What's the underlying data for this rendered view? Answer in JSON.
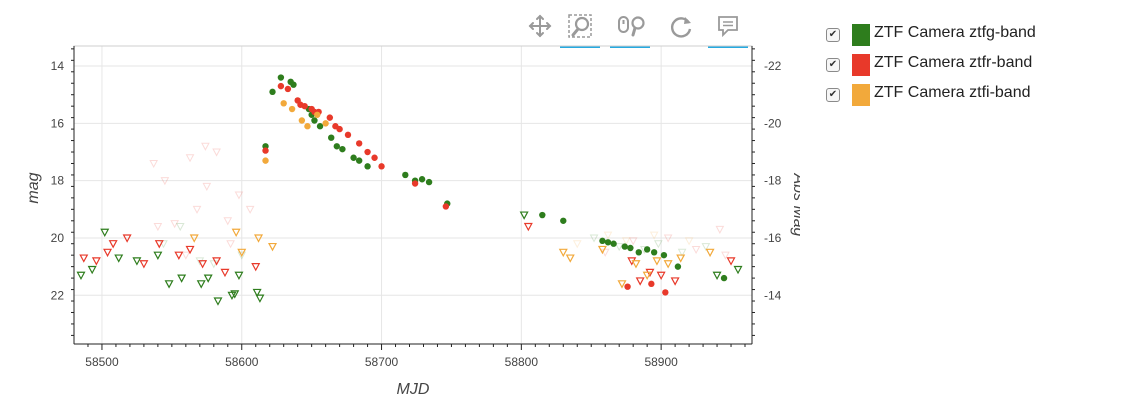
{
  "toolbar": {
    "tools": [
      {
        "name": "pan-tool",
        "icon": "move-icon",
        "active": false
      },
      {
        "name": "box-zoom-tool",
        "icon": "box-zoom-icon",
        "active": true
      },
      {
        "name": "wheel-zoom-tool",
        "icon": "wheel-zoom-icon",
        "active": true
      },
      {
        "name": "reset-tool",
        "icon": "reset-icon",
        "active": false
      },
      {
        "name": "hover-tool",
        "icon": "hover-icon",
        "active": true
      }
    ]
  },
  "legend": {
    "items": [
      {
        "label": "ZTF Camera ztfg-band",
        "color": "#2e7d1d",
        "checked": true
      },
      {
        "label": "ZTF Camera ztfr-band",
        "color": "#e8392a",
        "checked": true
      },
      {
        "label": "ZTF Camera ztfi-band",
        "color": "#f2a93b",
        "checked": true
      }
    ]
  },
  "chart_data": {
    "type": "scatter",
    "xlabel": "MJD",
    "ylabel": "mag",
    "y2label": "Abs Mag",
    "xlim": [
      58480,
      58965
    ],
    "ylim": [
      23.7,
      13.3
    ],
    "y2lim": [
      -12.3,
      -22.7
    ],
    "y_inverted": true,
    "grid": true,
    "xticks": [
      58500,
      58600,
      58700,
      58800,
      58900
    ],
    "yticks": [
      14,
      16,
      18,
      20,
      22
    ],
    "y2ticks": [
      -22,
      -20,
      -18,
      -16,
      -14
    ],
    "series": [
      {
        "name": "ZTF Camera ztfg-band",
        "color": "#2e7d1d",
        "detections": [
          [
            58617,
            16.8
          ],
          [
            58622,
            14.9
          ],
          [
            58628,
            14.4
          ],
          [
            58635,
            14.55
          ],
          [
            58637,
            14.65
          ],
          [
            58648,
            15.5
          ],
          [
            58650,
            15.7
          ],
          [
            58652,
            15.9
          ],
          [
            58656,
            16.1
          ],
          [
            58664,
            16.5
          ],
          [
            58668,
            16.8
          ],
          [
            58672,
            16.9
          ],
          [
            58680,
            17.2
          ],
          [
            58684,
            17.3
          ],
          [
            58690,
            17.5
          ],
          [
            58717,
            17.8
          ],
          [
            58724,
            18.0
          ],
          [
            58729,
            17.95
          ],
          [
            58734,
            18.05
          ],
          [
            58747,
            18.8
          ],
          [
            58815,
            19.2
          ],
          [
            58830,
            19.4
          ],
          [
            58858,
            20.1
          ],
          [
            58862,
            20.15
          ],
          [
            58866,
            20.2
          ],
          [
            58874,
            20.3
          ],
          [
            58878,
            20.35
          ],
          [
            58884,
            20.5
          ],
          [
            58890,
            20.4
          ],
          [
            58895,
            20.5
          ],
          [
            58902,
            20.6
          ],
          [
            58912,
            21.0
          ],
          [
            58945,
            21.4
          ]
        ],
        "upper_limits": [
          [
            58485,
            21.3
          ],
          [
            58493,
            21.1
          ],
          [
            58502,
            19.8
          ],
          [
            58512,
            20.7
          ],
          [
            58525,
            20.8
          ],
          [
            58540,
            20.6
          ],
          [
            58548,
            21.6
          ],
          [
            58557,
            21.4
          ],
          [
            58571,
            21.6
          ],
          [
            58576,
            21.4
          ],
          [
            58583,
            22.2
          ],
          [
            58593,
            22.0
          ],
          [
            58595,
            21.95
          ],
          [
            58598,
            21.3
          ],
          [
            58611,
            21.9
          ],
          [
            58613,
            22.1
          ],
          [
            58802,
            19.2
          ],
          [
            58940,
            21.3
          ],
          [
            58955,
            21.1
          ]
        ]
      },
      {
        "name": "ZTF Camera ztfr-band",
        "color": "#e8392a",
        "detections": [
          [
            58617,
            16.95
          ],
          [
            58628,
            14.7
          ],
          [
            58633,
            14.8
          ],
          [
            58640,
            15.2
          ],
          [
            58642,
            15.35
          ],
          [
            58645,
            15.4
          ],
          [
            58650,
            15.5
          ],
          [
            58652,
            15.6
          ],
          [
            58655,
            15.6
          ],
          [
            58663,
            15.8
          ],
          [
            58667,
            16.1
          ],
          [
            58670,
            16.2
          ],
          [
            58676,
            16.4
          ],
          [
            58684,
            16.7
          ],
          [
            58690,
            17.0
          ],
          [
            58695,
            17.2
          ],
          [
            58700,
            17.5
          ],
          [
            58724,
            18.1
          ],
          [
            58746,
            18.9
          ],
          [
            58876,
            21.7
          ],
          [
            58893,
            21.6
          ],
          [
            58903,
            21.9
          ]
        ],
        "upper_limits": [
          [
            58487,
            20.7
          ],
          [
            58496,
            20.8
          ],
          [
            58504,
            20.5
          ],
          [
            58508,
            20.2
          ],
          [
            58518,
            20.0
          ],
          [
            58530,
            20.9
          ],
          [
            58541,
            20.2
          ],
          [
            58555,
            20.6
          ],
          [
            58563,
            20.4
          ],
          [
            58572,
            20.9
          ],
          [
            58582,
            20.8
          ],
          [
            58588,
            21.2
          ],
          [
            58610,
            21.0
          ],
          [
            58805,
            19.6
          ],
          [
            58879,
            20.8
          ],
          [
            58885,
            21.5
          ],
          [
            58892,
            21.2
          ],
          [
            58900,
            21.3
          ],
          [
            58910,
            21.5
          ],
          [
            58950,
            20.8
          ]
        ]
      },
      {
        "name": "ZTF Camera ztfi-band",
        "color": "#f2a93b",
        "detections": [
          [
            58617,
            17.3
          ],
          [
            58630,
            15.3
          ],
          [
            58636,
            15.5
          ],
          [
            58643,
            15.9
          ],
          [
            58647,
            16.1
          ],
          [
            58654,
            15.7
          ],
          [
            58660,
            16.0
          ]
        ],
        "upper_limits": [
          [
            58566,
            20.0
          ],
          [
            58596,
            19.8
          ],
          [
            58600,
            20.5
          ],
          [
            58612,
            20.0
          ],
          [
            58622,
            20.3
          ],
          [
            58830,
            20.5
          ],
          [
            58835,
            20.7
          ],
          [
            58858,
            20.4
          ],
          [
            58872,
            21.6
          ],
          [
            58882,
            20.9
          ],
          [
            58890,
            21.3
          ],
          [
            58897,
            20.8
          ],
          [
            58905,
            20.9
          ],
          [
            58914,
            20.7
          ],
          [
            58935,
            20.5
          ]
        ]
      }
    ],
    "faint_upper_limits": [
      {
        "color": "#e8392a",
        "points": [
          [
            58537,
            17.4
          ],
          [
            58545,
            18.0
          ],
          [
            58552,
            19.5
          ],
          [
            58563,
            17.2
          ],
          [
            58568,
            19.0
          ],
          [
            58574,
            16.8
          ],
          [
            58582,
            17.0
          ],
          [
            58590,
            19.4
          ],
          [
            58598,
            18.5
          ],
          [
            58606,
            19.0
          ],
          [
            58540,
            19.6
          ],
          [
            58560,
            20.6
          ],
          [
            58575,
            18.2
          ],
          [
            58592,
            20.2
          ],
          [
            58860,
            20.5
          ],
          [
            58880,
            20.1
          ],
          [
            58905,
            20.0
          ],
          [
            58925,
            20.4
          ],
          [
            58942,
            19.7
          ],
          [
            58946,
            20.6
          ]
        ]
      },
      {
        "color": "#2e7d1d",
        "points": [
          [
            58544,
            20.2
          ],
          [
            58556,
            19.6
          ],
          [
            58570,
            20.8
          ],
          [
            58580,
            20.9
          ],
          [
            58600,
            20.6
          ],
          [
            58852,
            20.0
          ],
          [
            58870,
            20.3
          ],
          [
            58888,
            20.4
          ],
          [
            58898,
            20.2
          ],
          [
            58915,
            20.5
          ],
          [
            58932,
            20.3
          ]
        ]
      },
      {
        "color": "#f2a93b",
        "points": [
          [
            58840,
            20.2
          ],
          [
            58862,
            19.9
          ],
          [
            58875,
            20.1
          ],
          [
            58895,
            19.9
          ],
          [
            58920,
            20.1
          ]
        ]
      }
    ]
  }
}
